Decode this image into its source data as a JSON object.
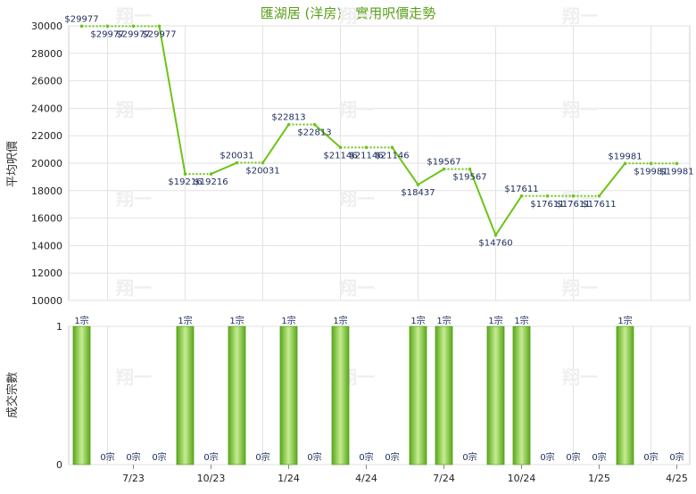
{
  "chart_data": [
    {
      "type": "line",
      "title": "匯湖居 (洋房) - 實用呎價走勢",
      "ylabel": "平均呎價",
      "ylim": [
        10000,
        30000
      ],
      "yticks": [
        10000,
        12000,
        14000,
        16000,
        18000,
        20000,
        22000,
        24000,
        26000,
        28000,
        30000
      ],
      "x_tick_labels": [
        "7/23",
        "10/23",
        "1/24",
        "4/24",
        "7/24",
        "10/24",
        "1/25",
        "4/25"
      ],
      "series": [
        {
          "points": [
            {
              "label": "$29977",
              "value": 29977
            },
            {
              "label": "$29977",
              "value": 29977
            },
            {
              "label": "$29977",
              "value": 29977
            },
            {
              "label": "$29977",
              "value": 29977
            },
            {
              "label": "$19216",
              "value": 19216
            },
            {
              "label": "$19216",
              "value": 19216
            },
            {
              "label": "$20031",
              "value": 20031
            },
            {
              "label": "$20031",
              "value": 20031
            },
            {
              "label": "$22813",
              "value": 22813
            },
            {
              "label": "$22813",
              "value": 22813
            },
            {
              "label": "$21146",
              "value": 21146
            },
            {
              "label": "$21146",
              "value": 21146
            },
            {
              "label": "$21146",
              "value": 21146
            },
            {
              "label": "$18437",
              "value": 18437
            },
            {
              "label": "$19567",
              "value": 19567
            },
            {
              "label": "$19567",
              "value": 19567
            },
            {
              "label": "$14760",
              "value": 14760
            },
            {
              "label": "$17611",
              "value": 17611
            },
            {
              "label": "$17611",
              "value": 17611
            },
            {
              "label": "$17611",
              "value": 17611
            },
            {
              "label": "$17611",
              "value": 17611
            },
            {
              "label": "$19981",
              "value": 19981
            },
            {
              "label": "$19981",
              "value": 19981
            },
            {
              "label": "$19981",
              "value": 19981
            }
          ]
        }
      ]
    },
    {
      "type": "bar",
      "ylabel": "成交宗數",
      "ylim": [
        0,
        1
      ],
      "yticks": [
        0,
        1
      ],
      "values": [
        1,
        0,
        0,
        0,
        1,
        0,
        1,
        0,
        1,
        0,
        1,
        0,
        0,
        1,
        1,
        0,
        1,
        1,
        0,
        0,
        0,
        1,
        0,
        0
      ],
      "labels": [
        "1宗",
        "0宗",
        "0宗",
        "0宗",
        "1宗",
        "0宗",
        "1宗",
        "0宗",
        "1宗",
        "0宗",
        "1宗",
        "0宗",
        "0宗",
        "1宗",
        "1宗",
        "0宗",
        "1宗",
        "1宗",
        "0宗",
        "0宗",
        "0宗",
        "1宗",
        "0宗",
        "0宗"
      ]
    }
  ],
  "colors": {
    "line": "#6cc417",
    "bar_light": "#bfe88a",
    "bar_dark": "#5aa81a",
    "title": "#5a9e1a"
  }
}
